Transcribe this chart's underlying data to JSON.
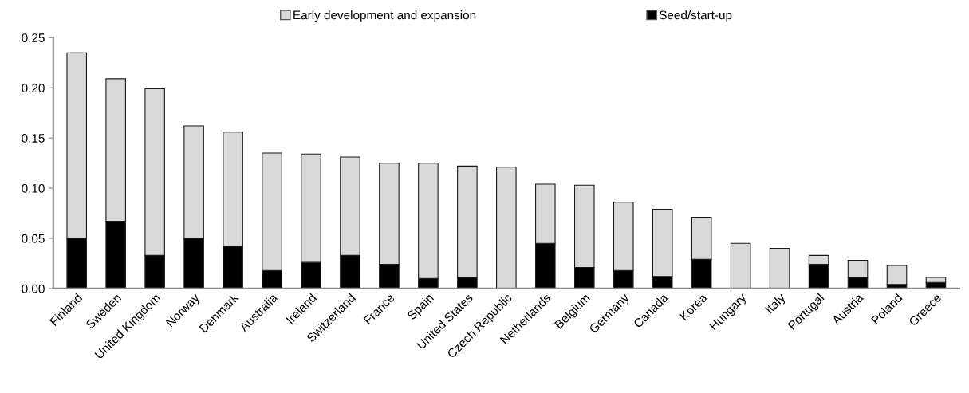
{
  "chart_data": {
    "type": "bar",
    "stacked": true,
    "categories": [
      "Finland",
      "Sweden",
      "United Kingdom",
      "Norway",
      "Denmark",
      "Australia",
      "Ireland",
      "Switzerland",
      "France",
      "Spain",
      "United States",
      "Czech Republic",
      "Netherlands",
      "Belgium",
      "Germany",
      "Canada",
      "Korea",
      "Hungary",
      "Italy",
      "Portugal",
      "Austria",
      "Poland",
      "Greece"
    ],
    "series": [
      {
        "name": "Seed/start-up",
        "color": "#000000",
        "values": [
          0.05,
          0.067,
          0.033,
          0.05,
          0.042,
          0.018,
          0.026,
          0.033,
          0.024,
          0.01,
          0.011,
          0.0,
          0.045,
          0.021,
          0.018,
          0.012,
          0.029,
          null,
          null,
          0.024,
          0.011,
          0.004,
          0.006
        ]
      },
      {
        "name": "Early development and expansion",
        "color": "#d9d9d9",
        "values": [
          0.185,
          0.142,
          0.166,
          0.112,
          0.114,
          0.117,
          0.108,
          0.098,
          0.101,
          0.115,
          0.111,
          0.121,
          0.059,
          0.082,
          0.068,
          0.067,
          0.042,
          0.045,
          0.04,
          0.009,
          0.017,
          0.019,
          0.005
        ]
      }
    ],
    "ylim": [
      0,
      0.25
    ],
    "yticks": [
      {
        "value": 0,
        "label": "0.00"
      },
      {
        "value": 0.05,
        "label": "0.05"
      },
      {
        "value": 0.1,
        "label": "0.10"
      },
      {
        "value": 0.15,
        "label": "0.15"
      },
      {
        "value": 0.2,
        "label": "0.20"
      },
      {
        "value": 0.25,
        "label": "0.25"
      }
    ],
    "grid": false,
    "legend": "top"
  }
}
